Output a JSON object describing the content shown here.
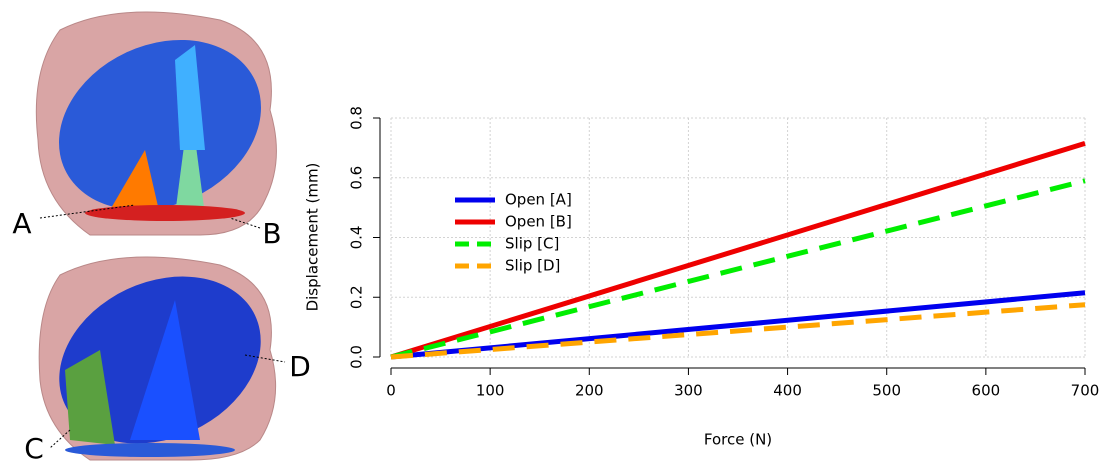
{
  "chart_data": {
    "type": "line",
    "xlabel": "Force (N)",
    "ylabel": "Displacement (mm)",
    "x": [
      0,
      700
    ],
    "series": [
      {
        "name": "Open [A]",
        "color": "#0000ee",
        "dash": false,
        "values": [
          0,
          0.215
        ]
      },
      {
        "name": "Open [B]",
        "color": "#ee0000",
        "dash": false,
        "values": [
          0,
          0.715
        ]
      },
      {
        "name": "Slip [C]",
        "color": "#00ee00",
        "dash": true,
        "values": [
          0,
          0.59
        ]
      },
      {
        "name": "Slip [D]",
        "color": "#ffa500",
        "dash": true,
        "values": [
          0,
          0.175
        ]
      }
    ],
    "xlim": [
      0,
      700
    ],
    "xticks": [
      0,
      100,
      200,
      300,
      400,
      500,
      600,
      700
    ],
    "ylim": [
      0,
      0.8
    ],
    "yticks": [
      {
        "value": 0,
        "label": "0.0"
      },
      0.2,
      0.4,
      0.6,
      0.8
    ],
    "grid": true,
    "legend": "left",
    "annotations": [
      "A",
      "B",
      "C",
      "D"
    ]
  }
}
